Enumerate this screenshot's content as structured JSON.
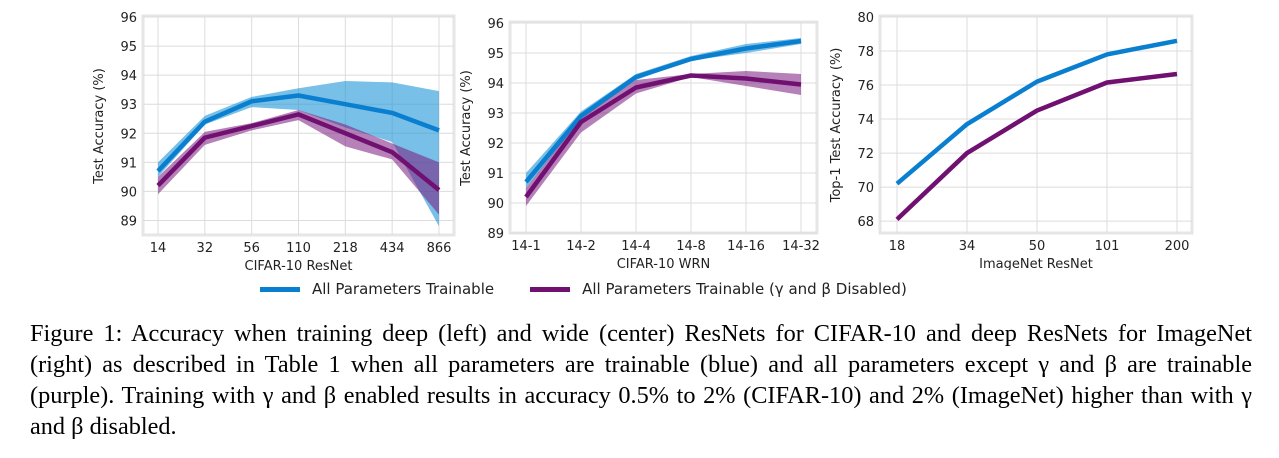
{
  "colors": {
    "blue": "#0a7fd0",
    "purple": "#701070",
    "blue_band": "rgba(30,150,215,0.6)",
    "purple_band": "rgba(120,25,125,0.55)"
  },
  "legend": [
    {
      "label": "All Parameters Trainable",
      "color": "#0a7fd0"
    },
    {
      "label": "All Parameters Trainable (γ and β Disabled)",
      "color": "#701070"
    }
  ],
  "chart_data": [
    {
      "type": "line",
      "xlabel": "CIFAR-10 ResNet",
      "ylabel": "Test Accuracy (%)",
      "categories": [
        "14",
        "32",
        "56",
        "110",
        "218",
        "434",
        "866"
      ],
      "ylim": [
        88.5,
        96
      ],
      "yticks": [
        89,
        90,
        91,
        92,
        93,
        94,
        95,
        96
      ],
      "grid": true,
      "series": [
        {
          "name": "All Parameters Trainable",
          "color": "blue",
          "values": [
            90.7,
            92.4,
            93.1,
            93.3,
            93.0,
            92.7,
            92.1
          ],
          "lower": [
            90.5,
            92.3,
            92.9,
            92.8,
            92.2,
            91.7,
            88.8
          ],
          "upper": [
            91.0,
            92.6,
            93.25,
            93.55,
            93.8,
            93.75,
            93.45
          ]
        },
        {
          "name": "All Parameters Trainable (γ and β Disabled)",
          "color": "purple",
          "values": [
            90.2,
            91.85,
            92.25,
            92.65,
            92.0,
            91.35,
            90.05
          ],
          "lower": [
            89.9,
            91.6,
            92.1,
            92.45,
            91.55,
            91.1,
            89.2
          ],
          "upper": [
            90.5,
            92.05,
            92.35,
            92.8,
            92.3,
            91.65,
            91.0
          ]
        }
      ]
    },
    {
      "type": "line",
      "xlabel": "CIFAR-10 WRN",
      "ylabel": "Test Accuracy (%)",
      "categories": [
        "14-1",
        "14-2",
        "14-4",
        "14-8",
        "14-16",
        "14-32"
      ],
      "ylim": [
        89,
        96
      ],
      "yticks": [
        89,
        90,
        91,
        92,
        93,
        94,
        95,
        96
      ],
      "grid": true,
      "series": [
        {
          "name": "All Parameters Trainable",
          "color": "blue",
          "values": [
            90.7,
            92.9,
            94.2,
            94.8,
            95.15,
            95.4
          ],
          "lower": [
            90.5,
            92.8,
            94.1,
            94.75,
            95.0,
            95.3
          ],
          "upper": [
            91.0,
            93.05,
            94.3,
            94.9,
            95.3,
            95.5
          ]
        },
        {
          "name": "All Parameters Trainable (γ and β Disabled)",
          "color": "purple",
          "values": [
            90.2,
            92.7,
            93.85,
            94.25,
            94.15,
            93.95
          ],
          "lower": [
            89.9,
            92.35,
            93.65,
            94.2,
            93.9,
            93.6
          ],
          "upper": [
            90.5,
            92.85,
            94.1,
            94.3,
            94.4,
            94.3
          ]
        }
      ]
    },
    {
      "type": "line",
      "xlabel": "ImageNet ResNet",
      "ylabel": "Top-1 Test Accuracy (%)",
      "categories": [
        "18",
        "34",
        "50",
        "101",
        "200"
      ],
      "ylim": [
        67.3,
        80
      ],
      "yticks": [
        68,
        70,
        72,
        74,
        76,
        78,
        80
      ],
      "grid": true,
      "series": [
        {
          "name": "All Parameters Trainable",
          "color": "blue",
          "values": [
            70.2,
            73.7,
            76.2,
            77.8,
            78.6
          ]
        },
        {
          "name": "All Parameters Trainable (γ and β Disabled)",
          "color": "purple",
          "values": [
            68.1,
            72.0,
            74.5,
            76.15,
            76.65
          ]
        }
      ]
    }
  ],
  "caption": "Figure 1: Accuracy when training deep (left) and wide (center) ResNets for CIFAR-10 and deep ResNets for ImageNet (right) as described in Table 1 when all parameters are trainable (blue) and all parameters except γ and β are trainable (purple). Training with γ and β enabled results in accuracy 0.5% to 2% (CIFAR-10) and 2% (ImageNet) higher than with γ and β disabled."
}
